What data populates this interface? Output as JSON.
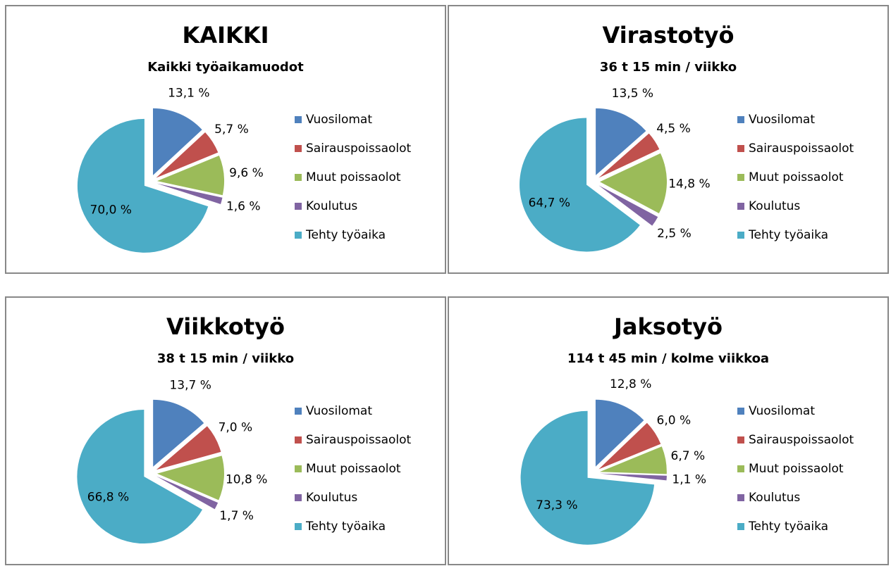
{
  "chart_data": [
    {
      "type": "pie",
      "title": "KAIKKI",
      "subtitle": "Kaikki työaikamuodot",
      "categories": [
        "Vuosilomat",
        "Sairauspoissaolot",
        "Muut poissaolot",
        "Koulutus",
        "Tehty työaika"
      ],
      "values": [
        13.1,
        5.7,
        9.6,
        1.6,
        70.0
      ],
      "value_labels": [
        "13,1 %",
        "5,7 %",
        "9,6 %",
        "1,6 %",
        "70,0 %"
      ],
      "colors": [
        "#4f81bd",
        "#c0504d",
        "#9bbb59",
        "#8064a2",
        "#4bacc6"
      ]
    },
    {
      "type": "pie",
      "title": "Virastotyö",
      "subtitle": "36 t 15 min / viikko",
      "categories": [
        "Vuosilomat",
        "Sairauspoissaolot",
        "Muut poissaolot",
        "Koulutus",
        "Tehty työaika"
      ],
      "values": [
        13.5,
        4.5,
        14.8,
        2.5,
        64.7
      ],
      "value_labels": [
        "13,5 %",
        "4,5 %",
        "14,8 %",
        "2,5 %",
        "64,7 %"
      ],
      "colors": [
        "#4f81bd",
        "#c0504d",
        "#9bbb59",
        "#8064a2",
        "#4bacc6"
      ]
    },
    {
      "type": "pie",
      "title": "Viikkotyö",
      "subtitle": "38 t 15 min / viikko",
      "categories": [
        "Vuosilomat",
        "Sairauspoissaolot",
        "Muut poissaolot",
        "Koulutus",
        "Tehty työaika"
      ],
      "values": [
        13.7,
        7.0,
        10.8,
        1.7,
        66.8
      ],
      "value_labels": [
        "13,7 %",
        "7,0 %",
        "10,8 %",
        "1,7 %",
        "66,8 %"
      ],
      "colors": [
        "#4f81bd",
        "#c0504d",
        "#9bbb59",
        "#8064a2",
        "#4bacc6"
      ]
    },
    {
      "type": "pie",
      "title": "Jaksotyö",
      "subtitle": "114 t 45 min / kolme viikkoa",
      "categories": [
        "Vuosilomat",
        "Sairauspoissaolot",
        "Muut poissaolot",
        "Koulutus",
        "Tehty työaika"
      ],
      "values": [
        12.8,
        6.0,
        6.7,
        1.1,
        73.3
      ],
      "value_labels": [
        "12,8 %",
        "6,0 %",
        "6,7 %",
        "1,1 %",
        "73,3 %"
      ],
      "colors": [
        "#4f81bd",
        "#c0504d",
        "#9bbb59",
        "#8064a2",
        "#4bacc6"
      ]
    }
  ]
}
